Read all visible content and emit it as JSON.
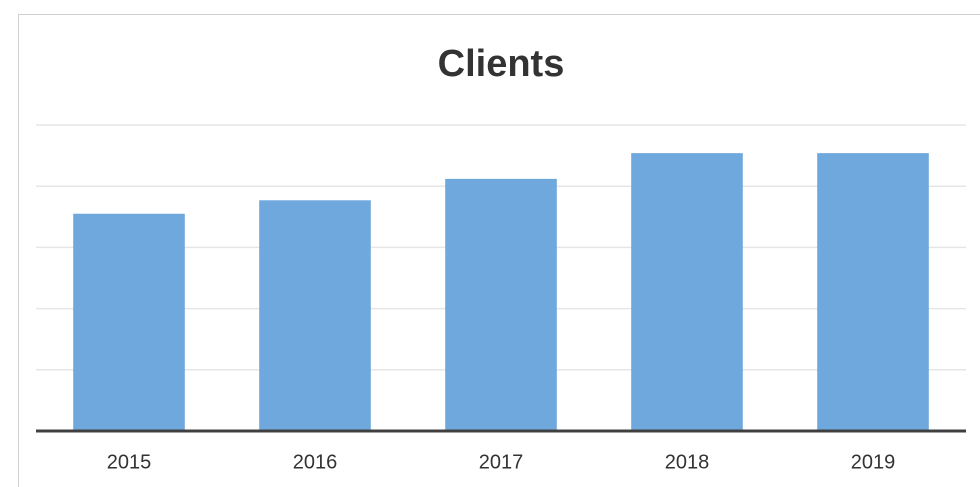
{
  "chart_data": {
    "type": "bar",
    "title": "Clients",
    "categories": [
      "2015",
      "2016",
      "2017",
      "2018",
      "2019"
    ],
    "values": [
      3.55,
      3.77,
      4.12,
      4.54,
      4.54
    ],
    "color": "#6fa8dc",
    "ylim": [
      0,
      5
    ],
    "yticks": [
      0,
      1,
      2,
      3,
      4,
      5
    ],
    "grid": true
  }
}
